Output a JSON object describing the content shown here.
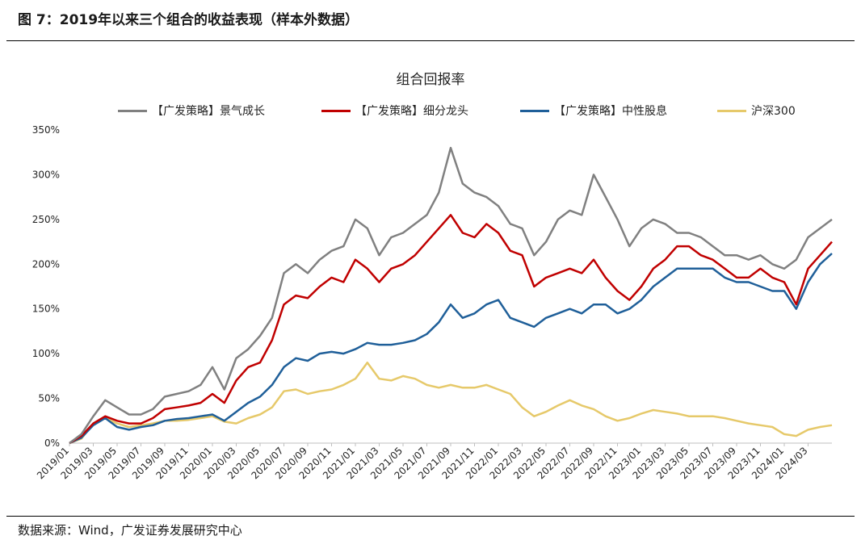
{
  "header": {
    "figure_title": "图 7：2019年以来三个组合的收益表现（样本外数据）"
  },
  "footer": {
    "source": "数据来源：Wind，广发证券发展研究中心"
  },
  "chart_data": {
    "type": "line",
    "title": "组合回报率",
    "xlabel": "",
    "ylabel": "",
    "ylim": [
      0,
      3.5
    ],
    "yticks": [
      0,
      0.5,
      1.0,
      1.5,
      2.0,
      2.5,
      3.0,
      3.5
    ],
    "ytick_labels": [
      "0%",
      "50%",
      "100%",
      "150%",
      "200%",
      "250%",
      "300%",
      "350%"
    ],
    "xlim": [
      "2019-01",
      "2024-05"
    ],
    "xtick_labels": [
      "2019/01",
      "2019/03",
      "2019/05",
      "2019/07",
      "2019/09",
      "2019/11",
      "2020/01",
      "2020/03",
      "2020/05",
      "2020/07",
      "2020/09",
      "2020/11",
      "2021/01",
      "2021/03",
      "2021/05",
      "2021/07",
      "2021/09",
      "2021/11",
      "2022/01",
      "2022/03",
      "2022/05",
      "2022/07",
      "2022/09",
      "2022/11",
      "2023/01",
      "2023/03",
      "2023/05",
      "2023/07",
      "2023/09",
      "2023/11",
      "2024/01",
      "2024/03"
    ],
    "grid": false,
    "legend_position": "top",
    "x": [
      "2019-01",
      "2019-02",
      "2019-03",
      "2019-04",
      "2019-05",
      "2019-06",
      "2019-07",
      "2019-08",
      "2019-09",
      "2019-10",
      "2019-11",
      "2019-12",
      "2020-01",
      "2020-02",
      "2020-03",
      "2020-04",
      "2020-05",
      "2020-06",
      "2020-07",
      "2020-08",
      "2020-09",
      "2020-10",
      "2020-11",
      "2020-12",
      "2021-01",
      "2021-02",
      "2021-03",
      "2021-04",
      "2021-05",
      "2021-06",
      "2021-07",
      "2021-08",
      "2021-09",
      "2021-10",
      "2021-11",
      "2021-12",
      "2022-01",
      "2022-02",
      "2022-03",
      "2022-04",
      "2022-05",
      "2022-06",
      "2022-07",
      "2022-08",
      "2022-09",
      "2022-10",
      "2022-11",
      "2022-12",
      "2023-01",
      "2023-02",
      "2023-03",
      "2023-04",
      "2023-05",
      "2023-06",
      "2023-07",
      "2023-08",
      "2023-09",
      "2023-10",
      "2023-11",
      "2023-12",
      "2024-01",
      "2024-02",
      "2024-03",
      "2024-04",
      "2024-05"
    ],
    "series": [
      {
        "name": "【广发策略】景气成长",
        "color": "#808080",
        "values": [
          0.0,
          0.1,
          0.3,
          0.48,
          0.4,
          0.32,
          0.32,
          0.38,
          0.52,
          0.55,
          0.58,
          0.65,
          0.85,
          0.6,
          0.95,
          1.05,
          1.2,
          1.4,
          1.9,
          2.0,
          1.9,
          2.05,
          2.15,
          2.2,
          2.5,
          2.4,
          2.1,
          2.3,
          2.35,
          2.45,
          2.55,
          2.8,
          3.3,
          2.9,
          2.8,
          2.75,
          2.65,
          2.45,
          2.4,
          2.1,
          2.25,
          2.5,
          2.6,
          2.55,
          3.0,
          2.75,
          2.5,
          2.2,
          2.4,
          2.5,
          2.45,
          2.35,
          2.35,
          2.3,
          2.2,
          2.1,
          2.1,
          2.05,
          2.1,
          2.0,
          1.95,
          2.05,
          2.3,
          2.4,
          2.5
        ]
      },
      {
        "name": "【广发策略】细分龙头",
        "color": "#c00000",
        "values": [
          0.0,
          0.08,
          0.22,
          0.3,
          0.25,
          0.22,
          0.22,
          0.28,
          0.38,
          0.4,
          0.42,
          0.45,
          0.55,
          0.45,
          0.7,
          0.85,
          0.9,
          1.15,
          1.55,
          1.65,
          1.62,
          1.75,
          1.85,
          1.8,
          2.05,
          1.95,
          1.8,
          1.95,
          2.0,
          2.1,
          2.25,
          2.4,
          2.55,
          2.35,
          2.3,
          2.45,
          2.35,
          2.15,
          2.1,
          1.75,
          1.85,
          1.9,
          1.95,
          1.9,
          2.05,
          1.85,
          1.7,
          1.6,
          1.75,
          1.95,
          2.05,
          2.2,
          2.2,
          2.1,
          2.05,
          1.95,
          1.85,
          1.85,
          1.95,
          1.85,
          1.8,
          1.55,
          1.95,
          2.1,
          2.25
        ]
      },
      {
        "name": "【广发策略】中性股息",
        "color": "#1f5f99",
        "values": [
          0.0,
          0.06,
          0.2,
          0.28,
          0.18,
          0.15,
          0.18,
          0.2,
          0.25,
          0.27,
          0.28,
          0.3,
          0.32,
          0.25,
          0.35,
          0.45,
          0.52,
          0.65,
          0.85,
          0.95,
          0.92,
          1.0,
          1.02,
          1.0,
          1.05,
          1.12,
          1.1,
          1.1,
          1.12,
          1.15,
          1.22,
          1.35,
          1.55,
          1.4,
          1.45,
          1.55,
          1.6,
          1.4,
          1.35,
          1.3,
          1.4,
          1.45,
          1.5,
          1.45,
          1.55,
          1.55,
          1.45,
          1.5,
          1.6,
          1.75,
          1.85,
          1.95,
          1.95,
          1.95,
          1.95,
          1.85,
          1.8,
          1.8,
          1.75,
          1.7,
          1.7,
          1.5,
          1.8,
          2.0,
          2.12
        ]
      },
      {
        "name": "沪深300",
        "color": "#e6c96a",
        "values": [
          0.0,
          0.05,
          0.22,
          0.28,
          0.22,
          0.18,
          0.2,
          0.22,
          0.25,
          0.25,
          0.26,
          0.28,
          0.3,
          0.24,
          0.22,
          0.28,
          0.32,
          0.4,
          0.58,
          0.6,
          0.55,
          0.58,
          0.6,
          0.65,
          0.72,
          0.9,
          0.72,
          0.7,
          0.75,
          0.72,
          0.65,
          0.62,
          0.65,
          0.62,
          0.62,
          0.65,
          0.6,
          0.55,
          0.4,
          0.3,
          0.35,
          0.42,
          0.48,
          0.42,
          0.38,
          0.3,
          0.25,
          0.28,
          0.33,
          0.37,
          0.35,
          0.33,
          0.3,
          0.3,
          0.3,
          0.28,
          0.25,
          0.22,
          0.2,
          0.18,
          0.1,
          0.08,
          0.15,
          0.18,
          0.2
        ]
      }
    ]
  }
}
